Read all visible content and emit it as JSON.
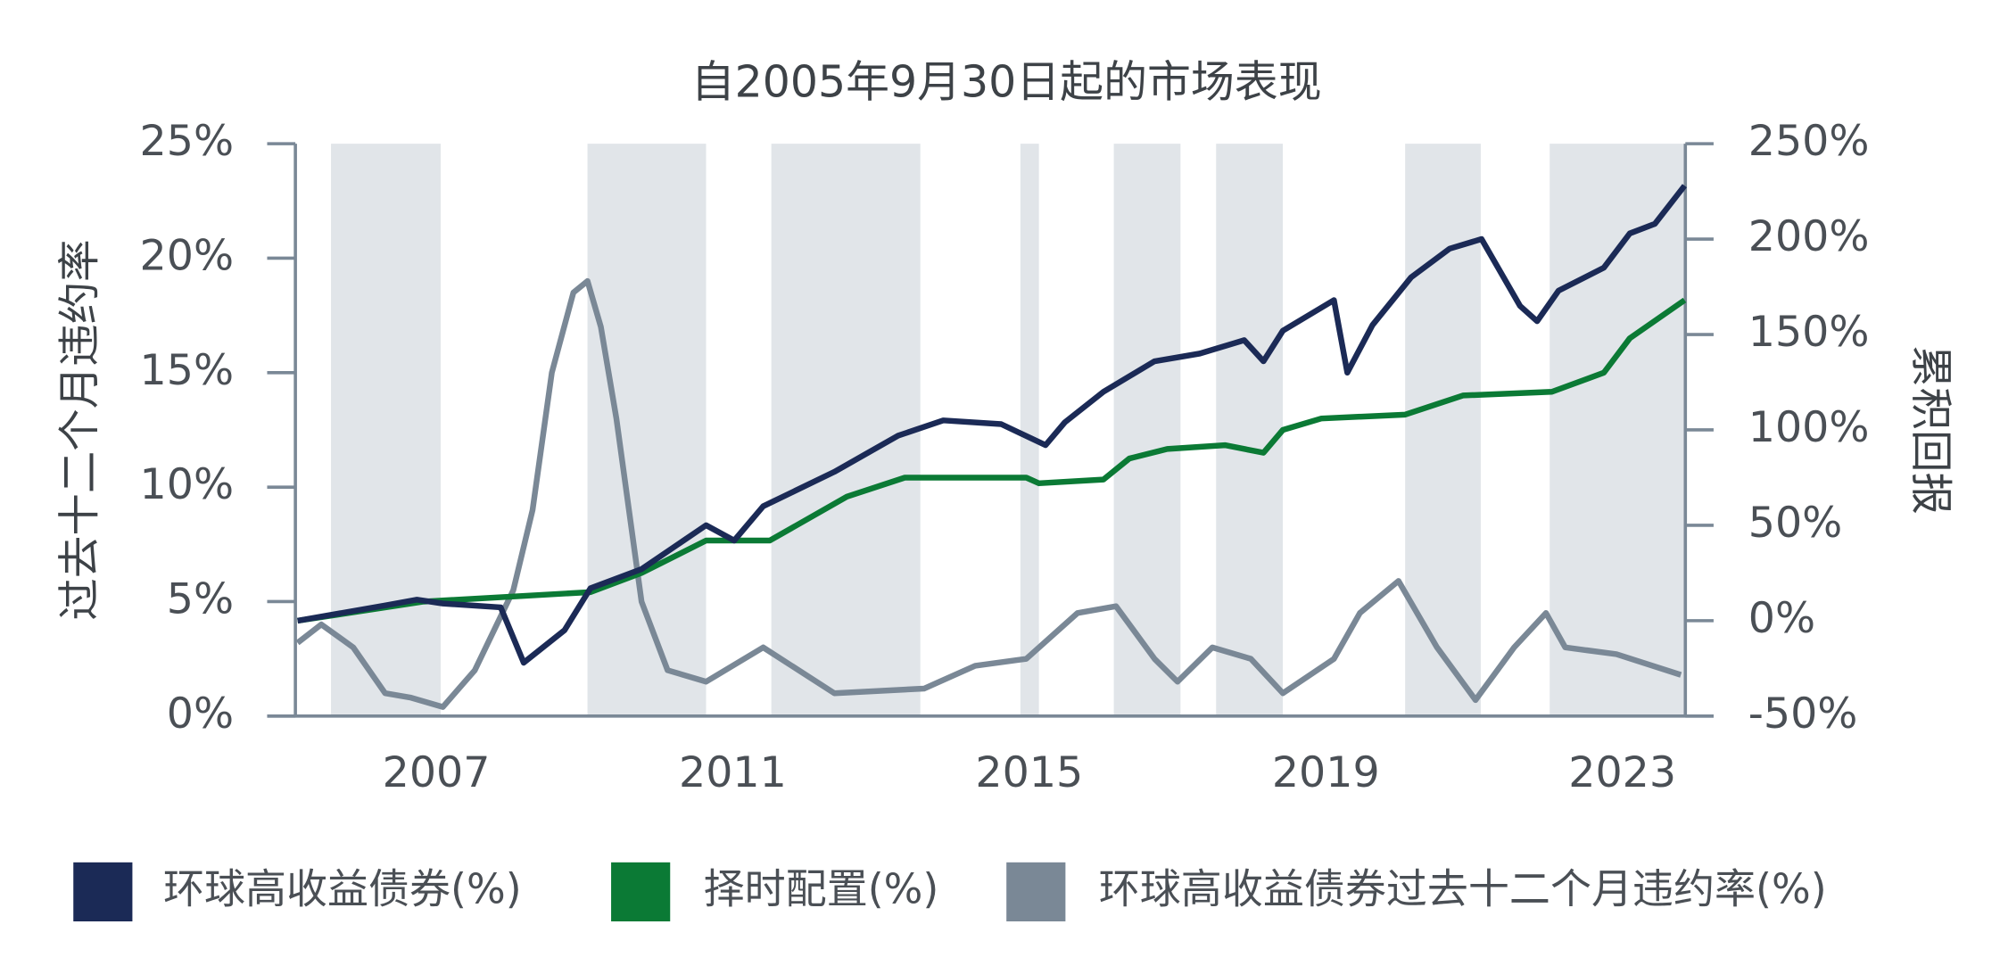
{
  "chart_data": {
    "type": "line",
    "title": "自2005年9月30日起的市场表现",
    "y_label": "过去十二个月违约率",
    "y2_label": "累积回报",
    "xlim": [
      2005.6,
      2024.35
    ],
    "xticks": [
      {
        "value": 2007.5,
        "label": "2007"
      },
      {
        "value": 2011.5,
        "label": "2011"
      },
      {
        "value": 2015.5,
        "label": "2015"
      },
      {
        "value": 2019.5,
        "label": "2019"
      },
      {
        "value": 2023.5,
        "label": "2023"
      }
    ],
    "ylim": [
      0,
      25
    ],
    "yticks": [
      {
        "value": 0,
        "label": "0%"
      },
      {
        "value": 5,
        "label": "5%"
      },
      {
        "value": 10,
        "label": "10%"
      },
      {
        "value": 15,
        "label": "15%"
      },
      {
        "value": 20,
        "label": "20%"
      },
      {
        "value": 25,
        "label": "25%"
      }
    ],
    "y2lim": [
      -50,
      250
    ],
    "y2ticks": [
      {
        "value": -50,
        "label": "-50%"
      },
      {
        "value": 0,
        "label": "0%"
      },
      {
        "value": 50,
        "label": "50%"
      },
      {
        "value": 100,
        "label": "100%"
      },
      {
        "value": 150,
        "label": "150%"
      },
      {
        "value": 200,
        "label": "200%"
      },
      {
        "value": 250,
        "label": "250%"
      }
    ],
    "shaded_ranges": [
      [
        2006.08,
        2007.56
      ],
      [
        2009.54,
        2011.14
      ],
      [
        2012.02,
        2014.03
      ],
      [
        2015.38,
        2015.63
      ],
      [
        2016.64,
        2017.54
      ],
      [
        2018.02,
        2018.92
      ],
      [
        2020.57,
        2021.59
      ],
      [
        2022.52,
        2024.35
      ]
    ],
    "shade_color": "#e1e5e9",
    "grid": false,
    "legend": "bottom",
    "series": [
      {
        "name": "环球高收益债券(%)",
        "color": "#1b2a56",
        "axis": "y2",
        "x": [
          2005.63,
          2006.81,
          2007.24,
          2007.59,
          2008.37,
          2008.68,
          2009.23,
          2009.58,
          2010.27,
          2011.14,
          2011.52,
          2011.91,
          2012.87,
          2013.73,
          2014.34,
          2015.12,
          2015.72,
          2015.98,
          2016.5,
          2017.19,
          2017.8,
          2018.4,
          2018.66,
          2018.92,
          2019.61,
          2019.79,
          2020.13,
          2020.65,
          2021.17,
          2021.6,
          2022.12,
          2022.35,
          2022.64,
          2023.25,
          2023.6,
          2023.94,
          2024.34
        ],
        "values": [
          0,
          8,
          11,
          9,
          7,
          -22,
          -5,
          17,
          27,
          50,
          42,
          60,
          78,
          97,
          105,
          103,
          92,
          104,
          120,
          136,
          140,
          147,
          136,
          152,
          168,
          130,
          155,
          180,
          195,
          200,
          165,
          157,
          173,
          185,
          203,
          208,
          228
        ]
      },
      {
        "name": "择时配置(%)",
        "color": "#0b7a35",
        "axis": "y2",
        "x": [
          2005.63,
          2007.33,
          2009.58,
          2010.27,
          2011.14,
          2012.0,
          2013.04,
          2013.82,
          2015.46,
          2015.63,
          2016.5,
          2016.85,
          2017.36,
          2018.14,
          2018.66,
          2018.92,
          2019.44,
          2020.57,
          2021.35,
          2022.55,
          2023.25,
          2023.6,
          2024.34
        ],
        "values": [
          0,
          10,
          15,
          25,
          42,
          42,
          65,
          75,
          75,
          72,
          74,
          85,
          90,
          92,
          88,
          100,
          106,
          108,
          118,
          120,
          130,
          148,
          168
        ]
      },
      {
        "name": "环球高收益债券过去十二个月违约率(%)",
        "color": "#7a8896",
        "axis": "y",
        "x": [
          2005.63,
          2005.95,
          2006.38,
          2006.81,
          2007.16,
          2007.59,
          2008.02,
          2008.54,
          2008.8,
          2009.06,
          2009.35,
          2009.54,
          2009.72,
          2009.93,
          2010.1,
          2010.27,
          2010.62,
          2011.14,
          2011.91,
          2012.87,
          2014.08,
          2014.77,
          2015.46,
          2016.15,
          2016.67,
          2017.19,
          2017.5,
          2017.97,
          2018.49,
          2018.92,
          2019.61,
          2019.96,
          2020.48,
          2021.0,
          2021.52,
          2022.04,
          2022.47,
          2022.73,
          2023.42,
          2024.29
        ],
        "values": [
          3.2,
          4,
          3,
          1.0,
          0.8,
          0.4,
          2,
          5.5,
          9,
          15,
          18.5,
          19,
          17,
          13,
          9,
          5,
          2,
          1.5,
          3,
          1,
          1.2,
          2.2,
          2.5,
          4.5,
          4.8,
          2.5,
          1.5,
          3.0,
          2.5,
          1.0,
          2.5,
          4.5,
          5.9,
          3,
          0.7,
          3,
          4.5,
          3,
          2.7,
          1.8
        ]
      }
    ]
  }
}
